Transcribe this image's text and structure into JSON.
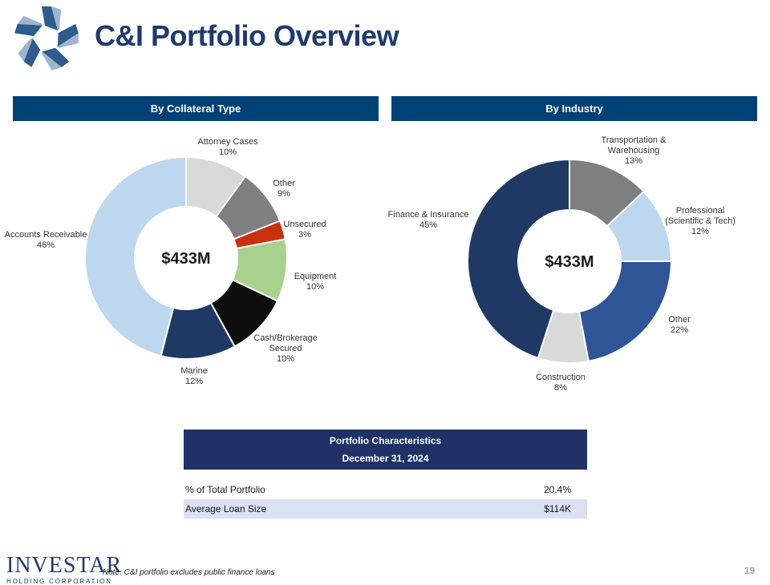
{
  "title": "C&I Portfolio Overview",
  "colors": {
    "header_bg": "#004176",
    "table_header_bg": "#1f3166",
    "table_alt_row": "#d9e1f2",
    "title": "#1f3a6e"
  },
  "chart_data": [
    {
      "type": "donut",
      "panel_title": "By Collateral Type",
      "center_label": "$433M",
      "slices": [
        {
          "name": "Attorney Cases",
          "value": 10,
          "color": "#d9d9d9",
          "label_lines": [
            "Attorney Cases",
            "10%"
          ]
        },
        {
          "name": "Other",
          "value": 9,
          "color": "#7f7f7f",
          "label_lines": [
            "Other",
            "9%"
          ]
        },
        {
          "name": "Unsecured",
          "value": 3,
          "color": "#c9300d",
          "label_lines": [
            "Unsecured",
            "3%"
          ]
        },
        {
          "name": "Equipment",
          "value": 10,
          "color": "#a9d18e",
          "label_lines": [
            "Equipment",
            "10%"
          ]
        },
        {
          "name": "Cash/Brokerage Secured",
          "value": 10,
          "color": "#0d0d0d",
          "label_lines": [
            "Cash/Brokerage",
            "Secured",
            "10%"
          ]
        },
        {
          "name": "Marine",
          "value": 12,
          "color": "#203864",
          "label_lines": [
            "Marine",
            "12%"
          ]
        },
        {
          "name": "Accounts Receivable",
          "value": 46,
          "color": "#bdd7ee",
          "label_lines": [
            "Accounts Receivable",
            "46%"
          ]
        }
      ]
    },
    {
      "type": "donut",
      "panel_title": "By Industry",
      "center_label": "$433M",
      "slices": [
        {
          "name": "Transportation & Warehousing",
          "value": 13,
          "color": "#7f7f7f",
          "label_lines": [
            "Transportation  &",
            "Warehousing",
            "13%"
          ]
        },
        {
          "name": "Professional (Scientific & Tech)",
          "value": 12,
          "color": "#bdd7ee",
          "label_lines": [
            "Professional",
            "(Scientific  & Tech)",
            "12%"
          ]
        },
        {
          "name": "Other",
          "value": 22,
          "color": "#2f5597",
          "label_lines": [
            "Other",
            "22%"
          ]
        },
        {
          "name": "Construction",
          "value": 8,
          "color": "#d9d9d9",
          "label_lines": [
            "Construction",
            "8%"
          ]
        },
        {
          "name": "Finance & Insurance",
          "value": 45,
          "color": "#203864",
          "label_lines": [
            "Finance  & Insurance",
            "45%"
          ]
        }
      ]
    }
  ],
  "table": {
    "title": "Portfolio Characteristics",
    "subtitle": "December 31, 2024",
    "rows": [
      {
        "label": "% of Total Portfolio",
        "value": "20.4%"
      },
      {
        "label": "Average Loan Size",
        "value": "$114K"
      }
    ]
  },
  "footer": {
    "brand": "INVESTAR",
    "brand_sub": "HOLDING CORPORATION",
    "note": "Note: C&I portfolio excludes public finance loans",
    "page_number": "19"
  }
}
